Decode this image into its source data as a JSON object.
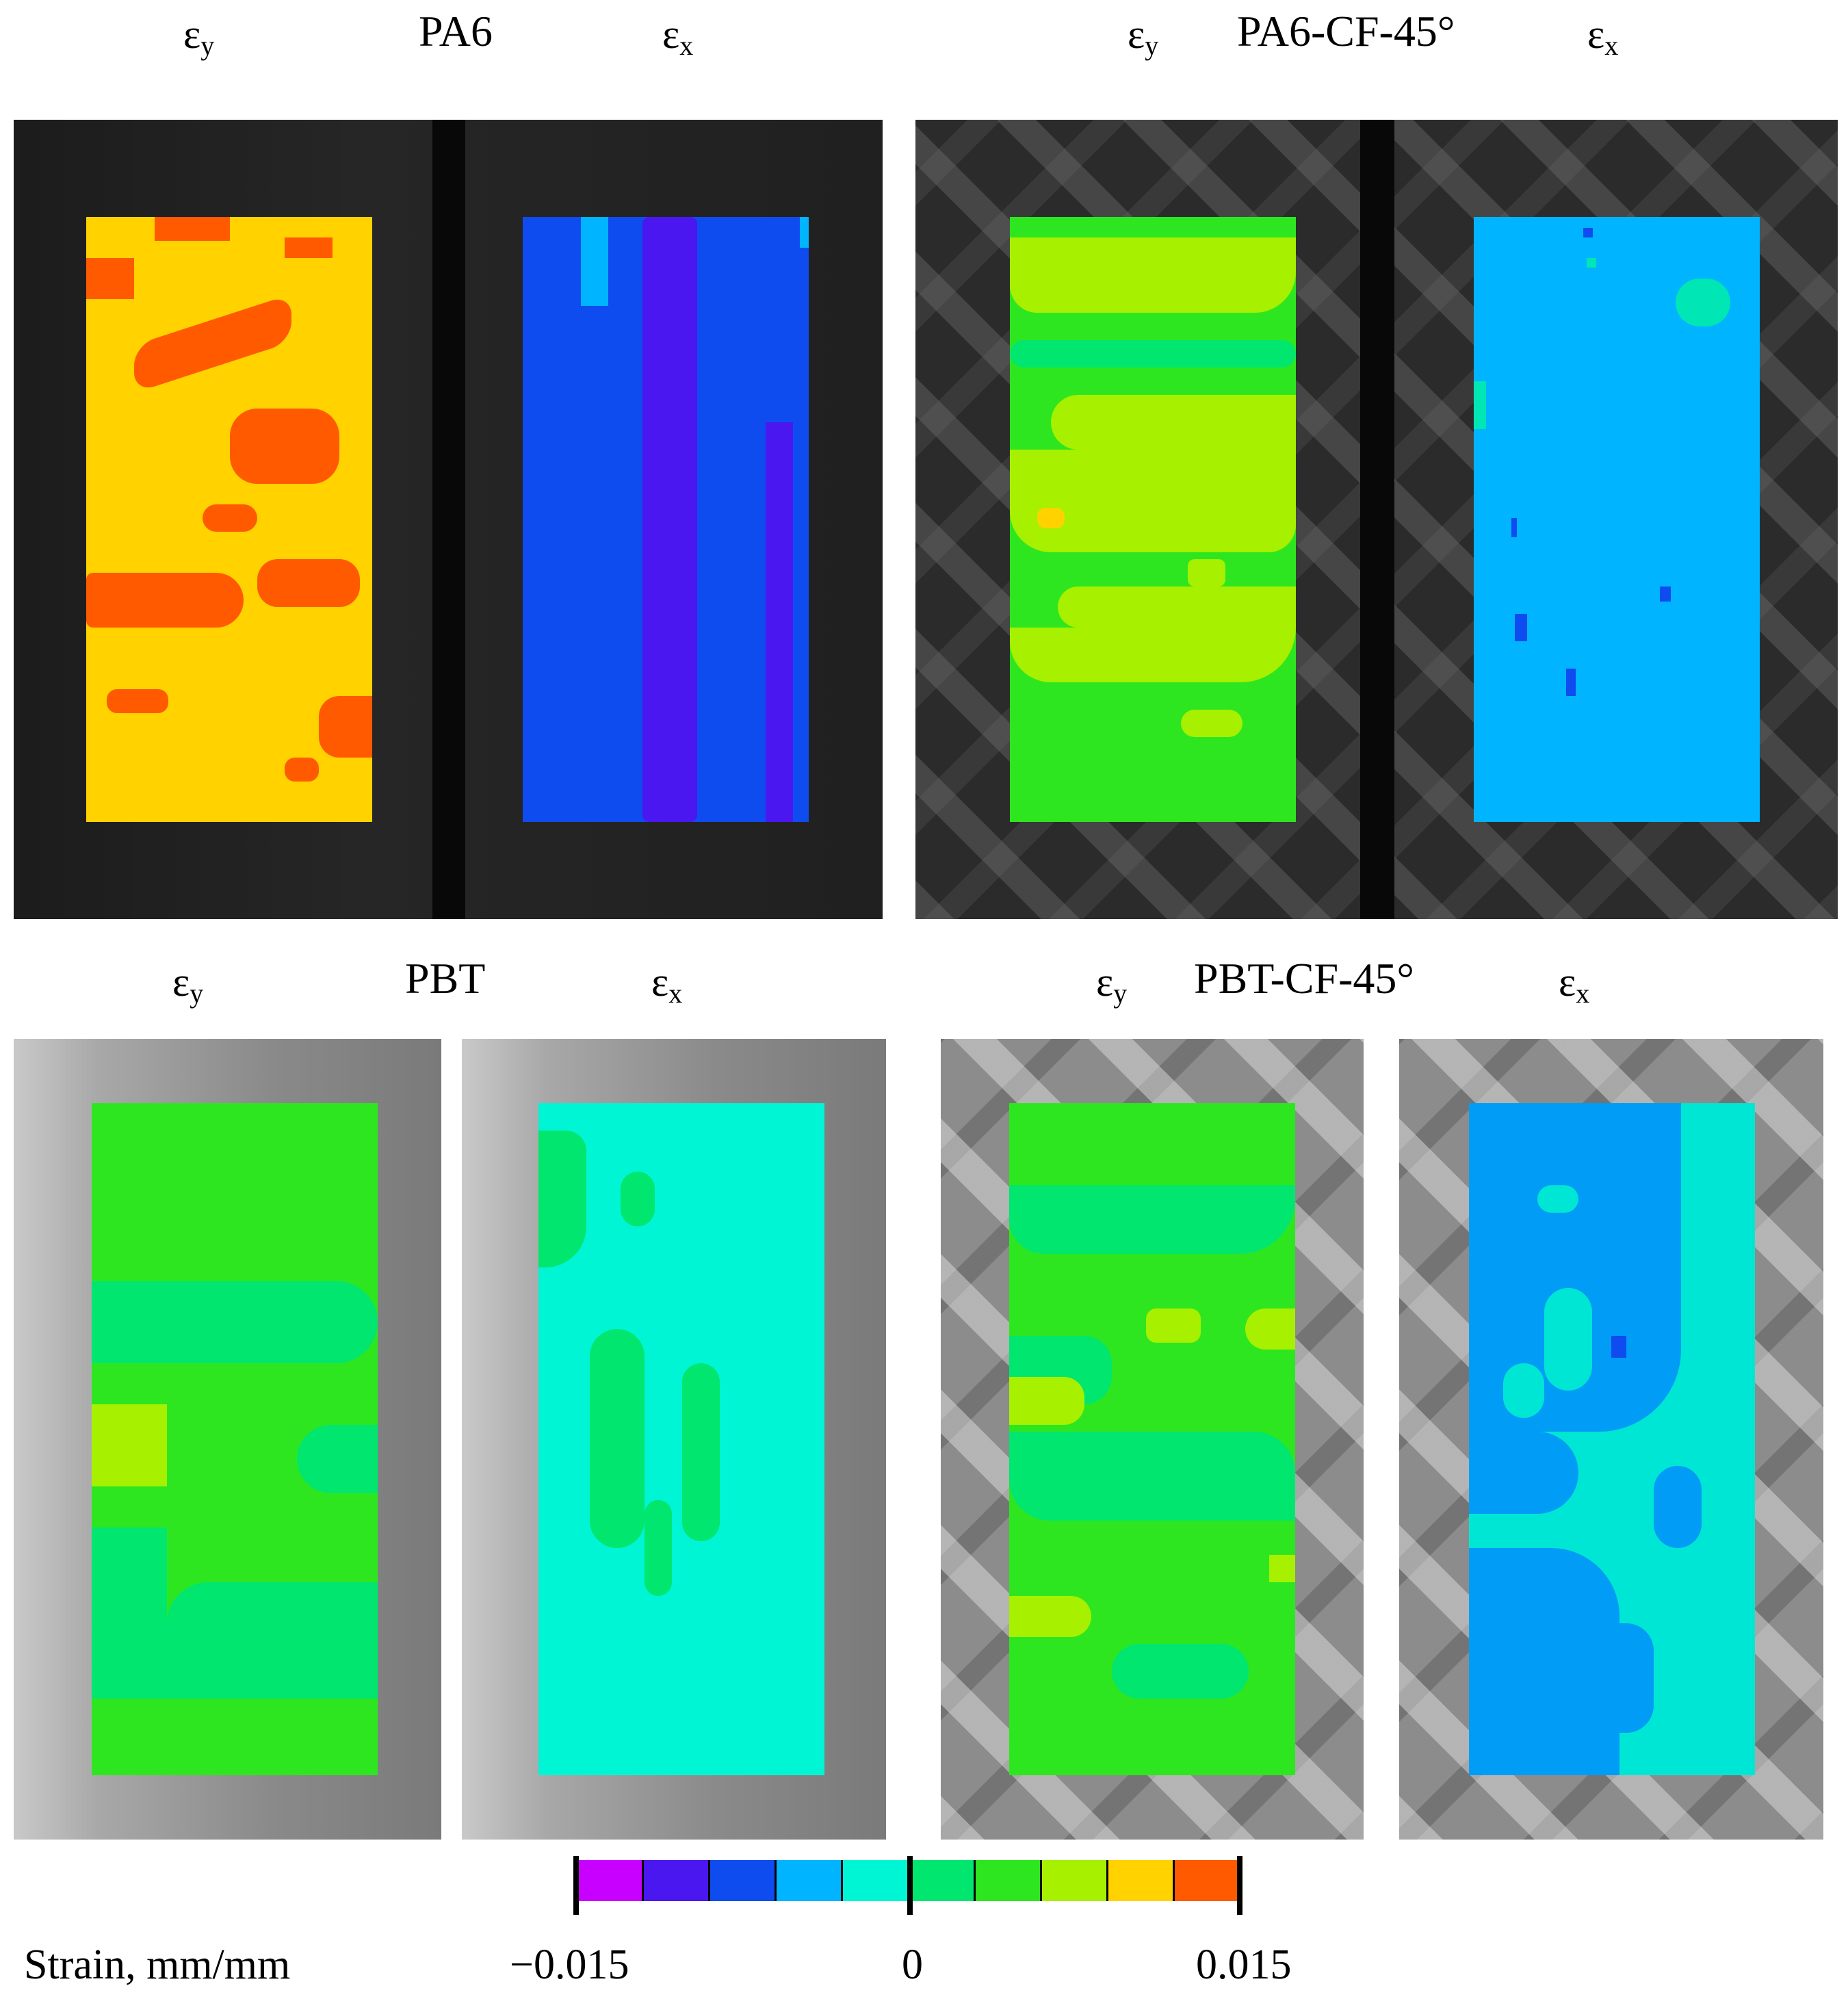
{
  "panels": [
    {
      "title": "PA6",
      "left_label": "εy",
      "right_label": "εx"
    },
    {
      "title": "PA6-CF-45°",
      "left_label": "εy",
      "right_label": "εx"
    },
    {
      "title": "PBT",
      "left_label": "εy",
      "right_label": "εx"
    },
    {
      "title": "PBT-CF-45°",
      "left_label": "εy",
      "right_label": "εx"
    }
  ],
  "labels": {
    "epsilon": "ε",
    "sub_y": "y",
    "sub_x": "x"
  },
  "colorbar": {
    "caption": "Strain, mm/mm",
    "min_label": "−0.015",
    "mid_label": "0",
    "max_label": "0.015",
    "min": -0.015,
    "max": 0.015,
    "colors": [
      "#c800ff",
      "#4a17f0",
      "#0f4cf0",
      "#00b4ff",
      "#00f5d4",
      "#00e66e",
      "#2ee620",
      "#a6f000",
      "#ffd200",
      "#ff5a00"
    ]
  }
}
